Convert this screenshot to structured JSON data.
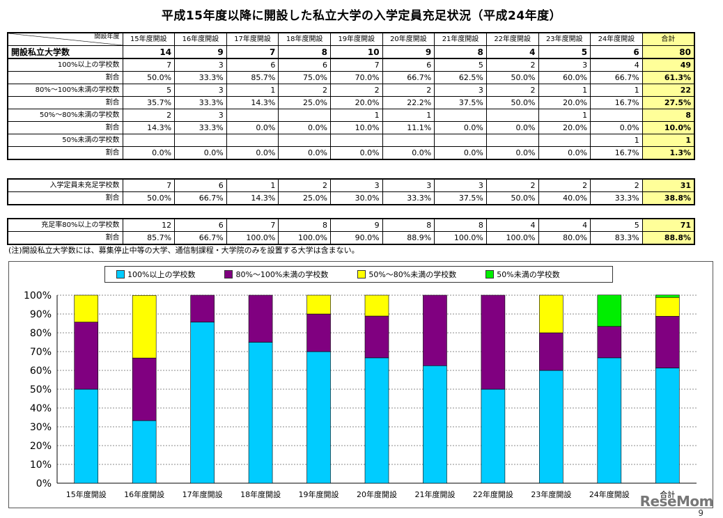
{
  "title": "平成15年度以降に開設した私立大学の入学定員充足状況（平成24年度）",
  "header": {
    "corner_label": "開設年度",
    "columns": [
      "15年度開設",
      "16年度開設",
      "17年度開設",
      "18年度開設",
      "19年度開設",
      "20年度開設",
      "21年度開設",
      "22年度開設",
      "23年度開設",
      "24年度開設",
      "合計"
    ]
  },
  "table1": [
    {
      "label": "開設私立大学数",
      "values": [
        "14",
        "9",
        "7",
        "8",
        "10",
        "9",
        "8",
        "4",
        "5",
        "6",
        "80"
      ]
    },
    {
      "label": "100%以上の学校数",
      "values": [
        "7",
        "3",
        "6",
        "6",
        "7",
        "6",
        "5",
        "2",
        "3",
        "4",
        "49"
      ]
    },
    {
      "label": "割合",
      "values": [
        "50.0%",
        "33.3%",
        "85.7%",
        "75.0%",
        "70.0%",
        "66.7%",
        "62.5%",
        "50.0%",
        "60.0%",
        "66.7%",
        "61.3%"
      ]
    },
    {
      "label": "80%～100%未満の学校数",
      "values": [
        "5",
        "3",
        "1",
        "2",
        "2",
        "2",
        "3",
        "2",
        "1",
        "1",
        "22"
      ]
    },
    {
      "label": "割合",
      "values": [
        "35.7%",
        "33.3%",
        "14.3%",
        "25.0%",
        "20.0%",
        "22.2%",
        "37.5%",
        "50.0%",
        "20.0%",
        "16.7%",
        "27.5%"
      ]
    },
    {
      "label": "50%～80%未満の学校数",
      "values": [
        "2",
        "3",
        "",
        "",
        "1",
        "1",
        "",
        "",
        "1",
        "",
        "8"
      ]
    },
    {
      "label": "割合",
      "values": [
        "14.3%",
        "33.3%",
        "0.0%",
        "0.0%",
        "10.0%",
        "11.1%",
        "0.0%",
        "0.0%",
        "20.0%",
        "0.0%",
        "10.0%"
      ]
    },
    {
      "label": "50%未満の学校数",
      "values": [
        "",
        "",
        "",
        "",
        "",
        "",
        "",
        "",
        "",
        "1",
        "1"
      ]
    },
    {
      "label": "割合",
      "values": [
        "0.0%",
        "0.0%",
        "0.0%",
        "0.0%",
        "0.0%",
        "0.0%",
        "0.0%",
        "0.0%",
        "0.0%",
        "16.7%",
        "1.3%"
      ]
    }
  ],
  "table2": [
    {
      "label": "入学定員未充足学校数",
      "values": [
        "7",
        "6",
        "1",
        "2",
        "3",
        "3",
        "3",
        "2",
        "2",
        "2",
        "31"
      ]
    },
    {
      "label": "割合",
      "values": [
        "50.0%",
        "66.7%",
        "14.3%",
        "25.0%",
        "30.0%",
        "33.3%",
        "37.5%",
        "50.0%",
        "40.0%",
        "33.3%",
        "38.8%"
      ]
    }
  ],
  "table3": [
    {
      "label": "充足率80%以上の学校数",
      "values": [
        "12",
        "6",
        "7",
        "8",
        "9",
        "8",
        "8",
        "4",
        "4",
        "5",
        "71"
      ]
    },
    {
      "label": "割合",
      "values": [
        "85.7%",
        "66.7%",
        "100.0%",
        "100.0%",
        "90.0%",
        "88.9%",
        "100.0%",
        "100.0%",
        "80.0%",
        "83.3%",
        "88.8%"
      ]
    }
  ],
  "note": "(注)開設私立大学数には、募集停止中等の大学、通信制課程・大学院のみを設置する大学は含まない。",
  "colors": {
    "s1": "#00ccff",
    "s2": "#800080",
    "s3": "#ffff00",
    "s4": "#00ee00",
    "total_bg": "#ffff99"
  },
  "chart_data": {
    "type": "bar",
    "stacked": true,
    "categories": [
      "15年度開設",
      "16年度開設",
      "17年度開設",
      "18年度開設",
      "19年度開設",
      "20年度開設",
      "21年度開設",
      "22年度開設",
      "23年度開設",
      "24年度開設",
      "合計"
    ],
    "series": [
      {
        "name": "100%以上の学校数",
        "color": "#00ccff",
        "values": [
          50.0,
          33.3,
          85.7,
          75.0,
          70.0,
          66.7,
          62.5,
          50.0,
          60.0,
          66.7,
          61.3
        ]
      },
      {
        "name": "80%～100%未満の学校数",
        "color": "#800080",
        "values": [
          35.7,
          33.3,
          14.3,
          25.0,
          20.0,
          22.2,
          37.5,
          50.0,
          20.0,
          16.7,
          27.5
        ]
      },
      {
        "name": "50%～80%未満の学校数",
        "color": "#ffff00",
        "values": [
          14.3,
          33.3,
          0.0,
          0.0,
          10.0,
          11.1,
          0.0,
          0.0,
          20.0,
          0.0,
          10.0
        ]
      },
      {
        "name": "50%未満の学校数",
        "color": "#00ee00",
        "values": [
          0.0,
          0.0,
          0.0,
          0.0,
          0.0,
          0.0,
          0.0,
          0.0,
          0.0,
          16.7,
          1.3
        ]
      }
    ],
    "yticks": [
      "0%",
      "10%",
      "20%",
      "30%",
      "40%",
      "50%",
      "60%",
      "70%",
      "80%",
      "90%",
      "100%"
    ],
    "ylim": [
      0,
      100
    ],
    "grid": true,
    "legend": "top"
  },
  "watermark": "ReseMom",
  "page_number": "9"
}
